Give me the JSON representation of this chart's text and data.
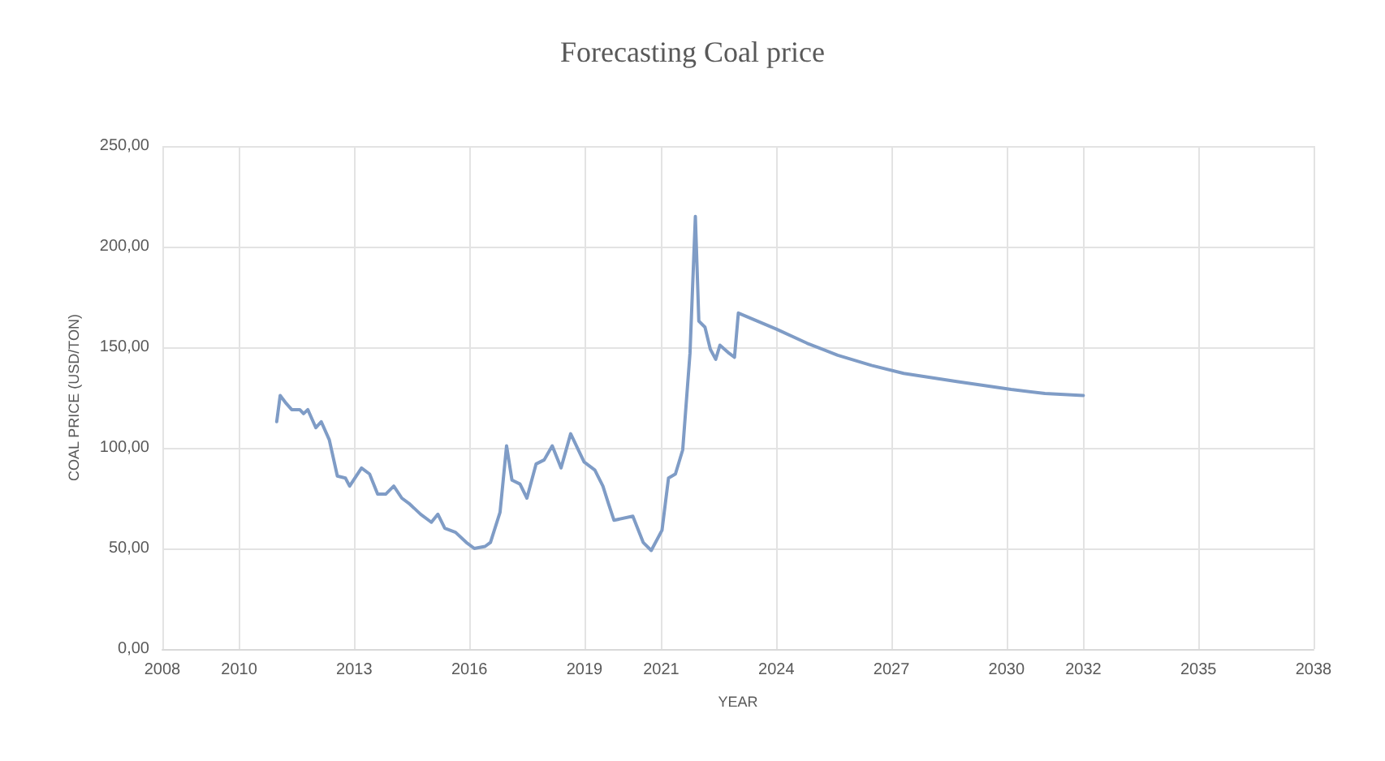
{
  "chart_data": {
    "type": "line",
    "title": "Forecasting Coal price",
    "xlabel": "YEAR",
    "ylabel": "COAL PRICE (USD/TON)",
    "series": [
      {
        "color": "#7f9cc6",
        "x": [
          2010.98,
          2011.07,
          2011.23,
          2011.37,
          2011.58,
          2011.68,
          2011.79,
          2012.0,
          2012.14,
          2012.35,
          2012.56,
          2012.77,
          2012.88,
          2013.19,
          2013.4,
          2013.61,
          2013.82,
          2014.03,
          2014.24,
          2014.45,
          2014.73,
          2015.01,
          2015.18,
          2015.36,
          2015.64,
          2015.92,
          2016.13,
          2016.41,
          2016.55,
          2016.8,
          2016.97,
          2017.11,
          2017.32,
          2017.5,
          2017.74,
          2017.95,
          2018.16,
          2018.39,
          2018.64,
          2018.99,
          2019.27,
          2019.48,
          2019.63,
          2019.77,
          2020.26,
          2020.53,
          2020.74,
          2021.02,
          2021.19,
          2021.37,
          2021.56,
          2021.75,
          2021.89,
          2021.98,
          2022.14,
          2022.28,
          2022.42,
          2022.53,
          2022.77,
          2022.91,
          2023.01,
          2024.0,
          2024.8,
          2025.6,
          2026.48,
          2027.32,
          2028.7,
          2030.12,
          2031.0,
          2032.0
        ],
        "values": [
          113,
          126,
          122,
          119,
          119,
          117,
          119,
          110,
          113,
          104,
          86,
          85,
          81,
          90,
          87,
          77,
          77,
          81,
          75,
          72,
          67,
          63,
          67,
          60,
          58,
          53,
          50,
          51,
          53,
          68,
          101,
          84,
          82,
          75,
          92,
          94,
          101,
          90,
          107,
          93,
          89,
          81,
          72,
          64,
          66,
          53,
          49,
          59,
          85,
          87,
          99,
          147,
          215,
          163,
          160,
          149,
          144,
          151,
          147,
          145,
          167,
          159,
          152,
          146,
          141,
          137,
          133,
          129,
          127,
          126
        ]
      }
    ],
    "xlim": [
      2008,
      2038
    ],
    "xticks": [
      2008,
      2010,
      2013,
      2016,
      2019,
      2021,
      2024,
      2027,
      2030,
      2032,
      2035,
      2038
    ],
    "ylim": [
      0,
      250
    ],
    "yticks": [
      {
        "value": 0,
        "label": "0,00"
      },
      {
        "value": 50,
        "label": "50,00"
      },
      {
        "value": 100,
        "label": "100,00"
      },
      {
        "value": 150,
        "label": "150,00"
      },
      {
        "value": 200,
        "label": "200,00"
      },
      {
        "value": 250,
        "label": "250,00"
      }
    ],
    "grid": true,
    "marker": "none",
    "line_style": "solid"
  }
}
